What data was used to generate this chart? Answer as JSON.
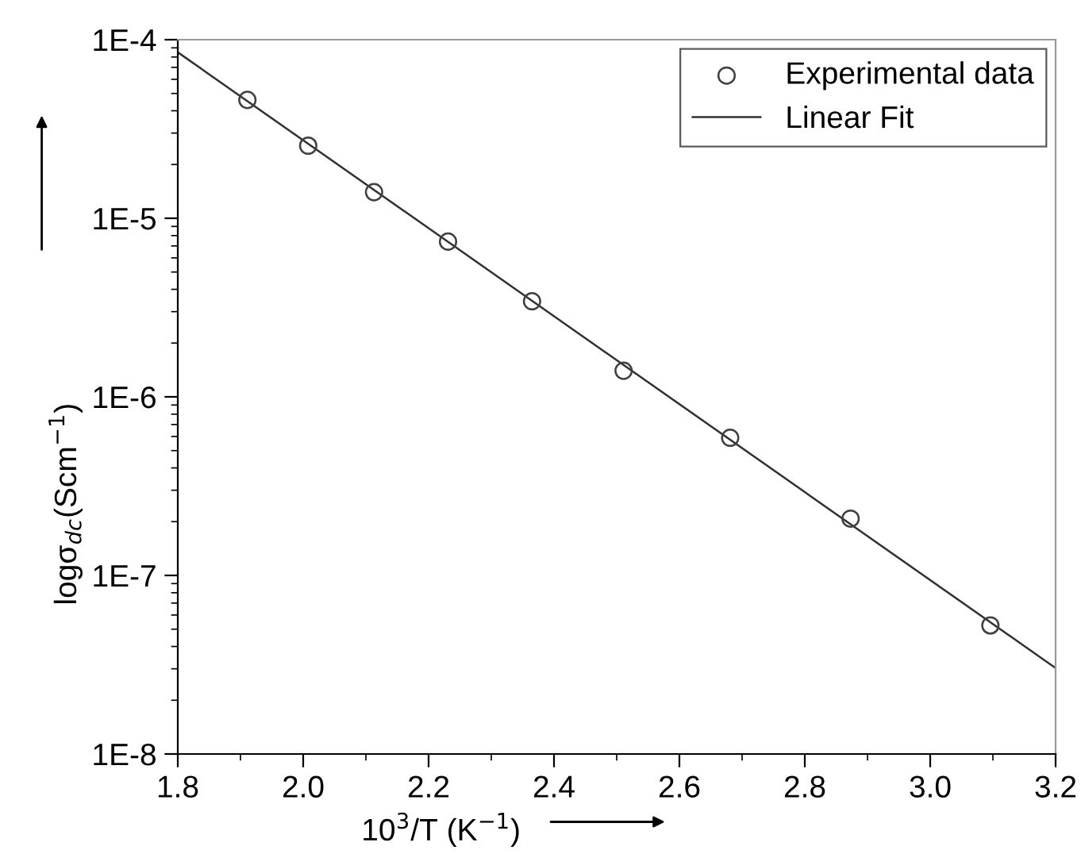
{
  "chart_data": {
    "type": "scatter",
    "xlabel": "10$^{3}$/T (K$^{−1}$)",
    "ylabel": "logσ$_{dc}$(Scm$^{−1}$)",
    "log": "y",
    "xlim": [
      1.8,
      3.2
    ],
    "ylim": [
      1e-08,
      0.0001
    ],
    "xticks": [
      {
        "value": 1.8,
        "label": "1.8"
      },
      {
        "value": 2.0,
        "label": "2.0"
      },
      {
        "value": 2.2,
        "label": "2.2"
      },
      {
        "value": 2.4,
        "label": "2.4"
      },
      {
        "value": 2.6,
        "label": "2.6"
      },
      {
        "value": 2.8,
        "label": "2.8"
      },
      {
        "value": 3.0,
        "label": "3.0"
      },
      {
        "value": 3.2,
        "label": "3.2"
      }
    ],
    "yticks": [
      {
        "value": 1e-08,
        "label": "1E-8"
      },
      {
        "value": 1e-07,
        "label": "1E-7"
      },
      {
        "value": 1e-06,
        "label": "1E-6"
      },
      {
        "value": 1e-05,
        "label": "1E-5"
      },
      {
        "value": 0.0001,
        "label": "1E-4"
      }
    ],
    "grid": false,
    "legend": "top right",
    "series": [
      {
        "name": "Experimental data",
        "marker": "circle",
        "color": "#404040",
        "x": [
          1.911,
          2.008,
          2.113,
          2.231,
          2.365,
          2.511,
          2.681,
          2.873,
          3.096
        ],
        "values": [
          4.6e-05,
          2.55e-05,
          1.4e-05,
          7.4e-06,
          3.43e-06,
          1.4e-06,
          5.9e-07,
          2.08e-07,
          5.25e-08
        ]
      },
      {
        "name": "Linear Fit",
        "type": "line",
        "line_style": "solid",
        "color": "#303030",
        "x": [
          1.8,
          3.2
        ],
        "values": [
          8.5e-05,
          3.03e-08
        ]
      }
    ]
  }
}
